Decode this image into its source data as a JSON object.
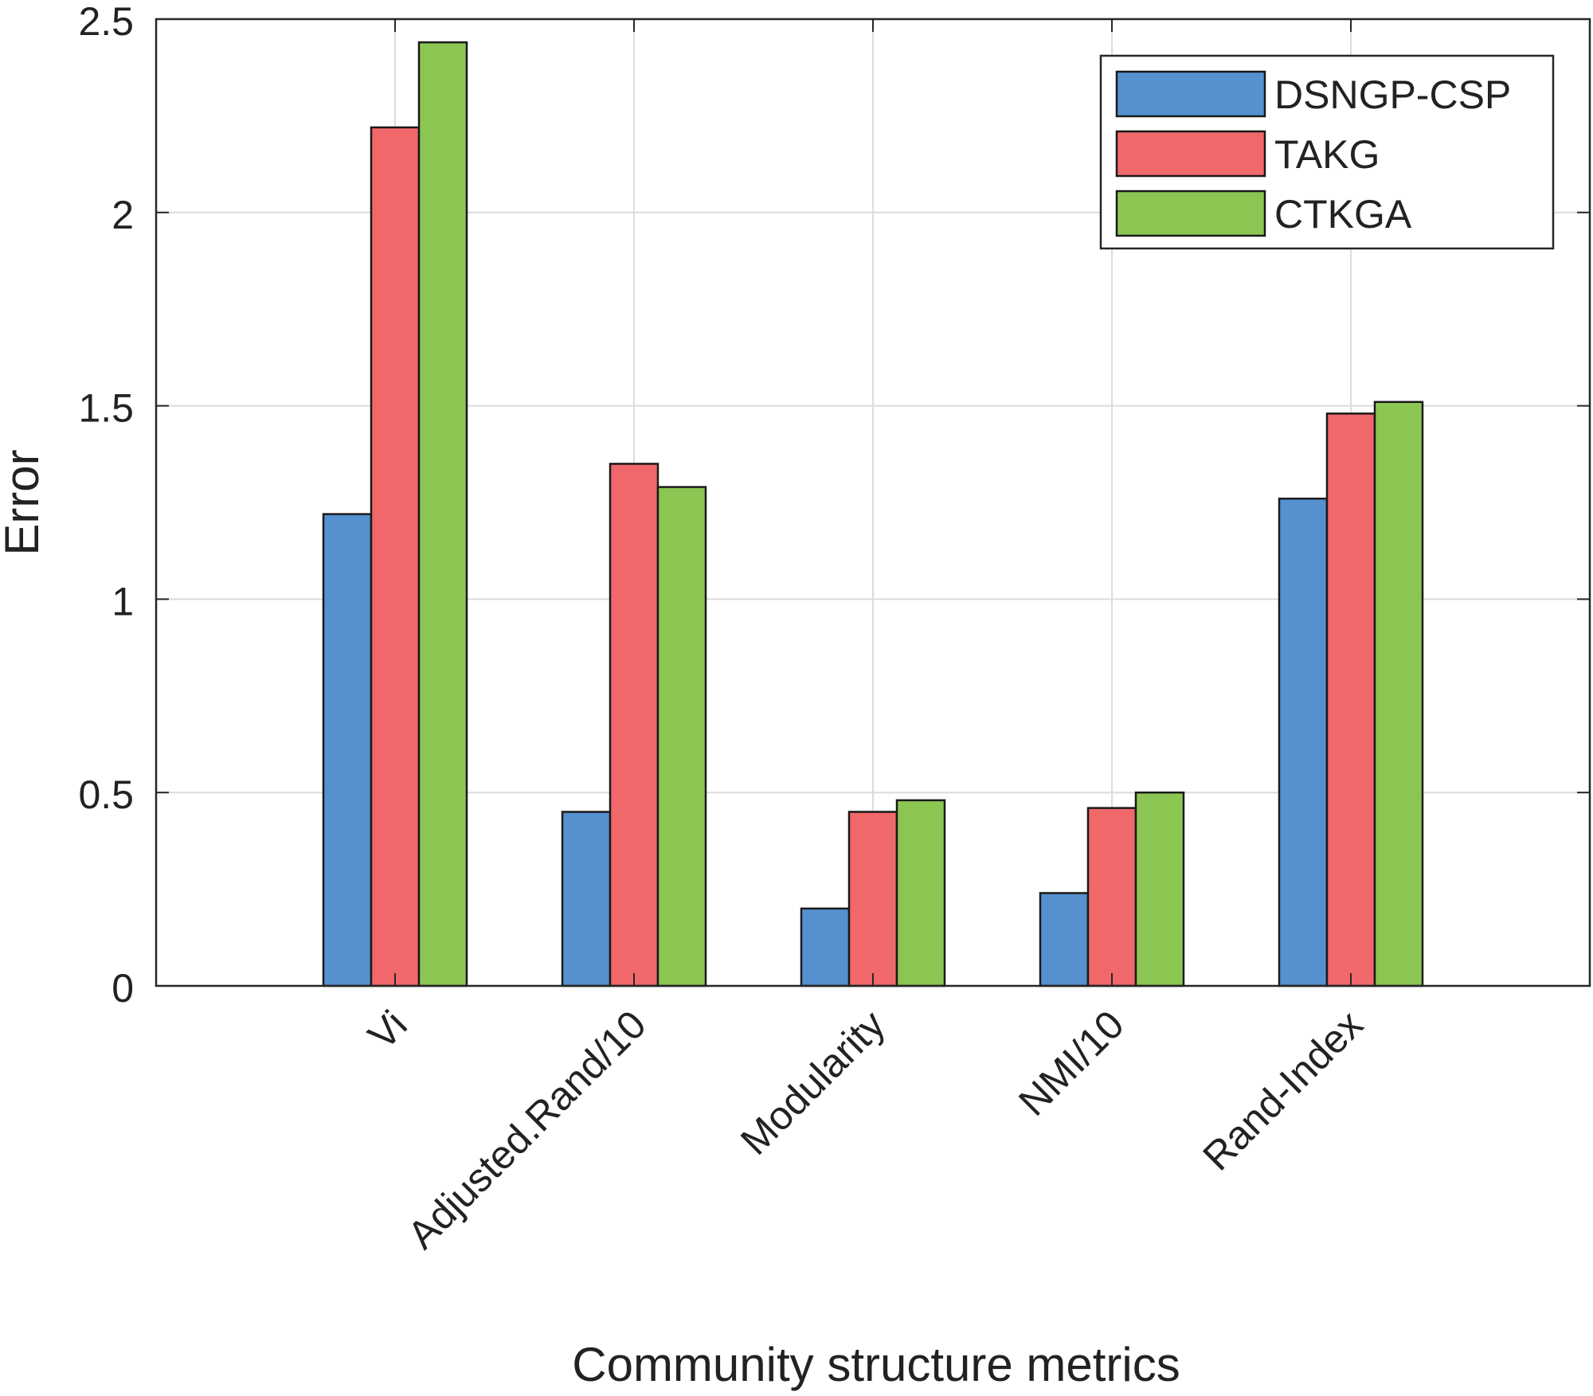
{
  "chart_data": {
    "type": "bar",
    "title": "",
    "xlabel": "Community structure metrics",
    "ylabel": "Error",
    "categories": [
      "Vi",
      "Adjusted.Rand/10",
      "Modularity",
      "NMI/10",
      "Rand-Index"
    ],
    "series": [
      {
        "name": "DSNGP-CSP",
        "color": "#5590cf",
        "values": [
          1.22,
          0.45,
          0.2,
          0.24,
          1.26
        ]
      },
      {
        "name": "TAKG",
        "color": "#f0686a",
        "values": [
          2.22,
          1.35,
          0.45,
          0.46,
          1.48
        ]
      },
      {
        "name": "CTKGA",
        "color": "#8bc653",
        "values": [
          2.44,
          1.29,
          0.48,
          0.5,
          1.51
        ]
      }
    ],
    "ylim": [
      0,
      2.5
    ],
    "xlim": [
      0,
      6
    ],
    "yticks": [
      0,
      0.5,
      1,
      1.5,
      2,
      2.5
    ],
    "ytick_labels": [
      "0",
      "0.5",
      "1",
      "1.5",
      "2",
      "2.5"
    ],
    "grid": true,
    "legend_position": "top-right"
  }
}
